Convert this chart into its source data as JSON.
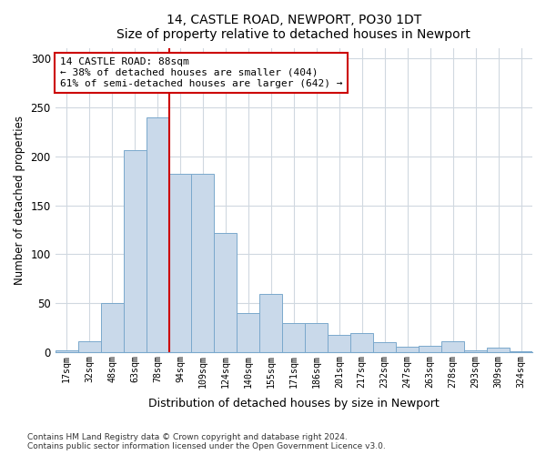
{
  "title1": "14, CASTLE ROAD, NEWPORT, PO30 1DT",
  "title2": "Size of property relative to detached houses in Newport",
  "xlabel": "Distribution of detached houses by size in Newport",
  "ylabel": "Number of detached properties",
  "categories": [
    "17sqm",
    "32sqm",
    "48sqm",
    "63sqm",
    "78sqm",
    "94sqm",
    "109sqm",
    "124sqm",
    "140sqm",
    "155sqm",
    "171sqm",
    "186sqm",
    "201sqm",
    "217sqm",
    "232sqm",
    "247sqm",
    "263sqm",
    "278sqm",
    "293sqm",
    "309sqm",
    "324sqm"
  ],
  "values": [
    2,
    11,
    50,
    206,
    240,
    182,
    182,
    122,
    40,
    60,
    30,
    30,
    18,
    20,
    10,
    6,
    7,
    11,
    2,
    5,
    1
  ],
  "bar_color": "#c9d9ea",
  "bar_edge_color": "#7aa8cc",
  "vline_color": "#cc0000",
  "vline_x": 4.5,
  "annotation_title": "14 CASTLE ROAD: 88sqm",
  "annotation_line1": "← 38% of detached houses are smaller (404)",
  "annotation_line2": "61% of semi-detached houses are larger (642) →",
  "annotation_box_facecolor": "#ffffff",
  "annotation_box_edgecolor": "#cc0000",
  "ylim": [
    0,
    310
  ],
  "yticks": [
    0,
    50,
    100,
    150,
    200,
    250,
    300
  ],
  "footer1": "Contains HM Land Registry data © Crown copyright and database right 2024.",
  "footer2": "Contains public sector information licensed under the Open Government Licence v3.0.",
  "background_color": "#ffffff",
  "grid_color": "#d0d8e0"
}
